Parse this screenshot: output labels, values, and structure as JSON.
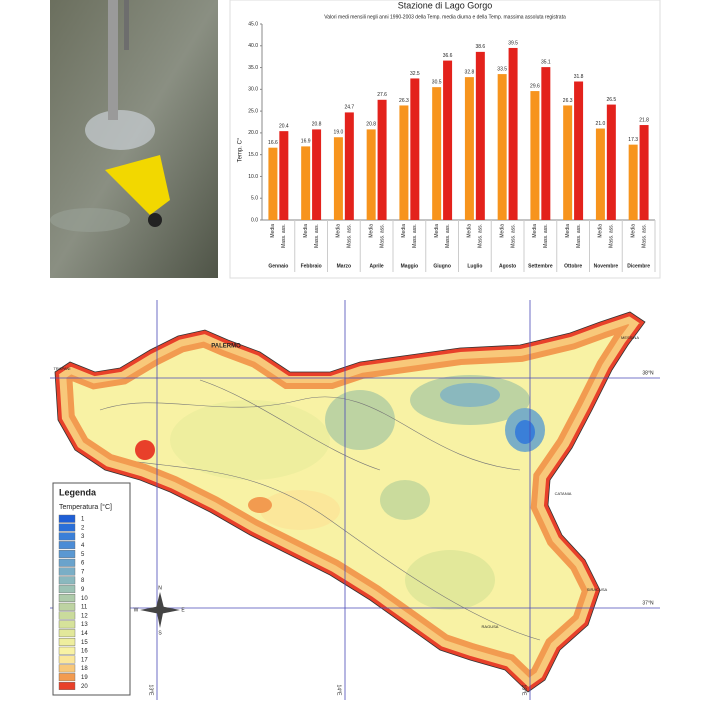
{
  "chart_data": {
    "type": "bar",
    "title": "Stazione di Lago Gorgo",
    "subtitle": "Valori medi mensili negli anni 1990-2003 della Temp. media diurna e della Temp. massima assoluta registrata",
    "y_label": "Temp. C°",
    "categories": [
      "Gennaio",
      "Febbraio",
      "Marzo",
      "Aprile",
      "Maggio",
      "Giugno",
      "Luglio",
      "Agosto",
      "Settembre",
      "Ottobre",
      "Novembre",
      "Dicembre"
    ],
    "series": [
      {
        "name": "Media",
        "color": "#f7941d",
        "values": [
          16.6,
          16.9,
          19,
          20.8,
          26.3,
          30.5,
          32.8,
          33.5,
          29.6,
          26.3,
          21,
          17.3
        ],
        "value_labels": [
          "16.6",
          "16.9",
          "19.0",
          "20.8",
          "26.3",
          "30.5",
          "32.8",
          "33.5",
          "29.6",
          "26.3",
          "21.0",
          "17.3"
        ]
      },
      {
        "name": "Mass. ass.",
        "color": "#e3221c",
        "values": [
          20.4,
          20.8,
          24.7,
          27.6,
          32.5,
          36.6,
          38.6,
          39.5,
          35.1,
          31.8,
          26.5,
          21.8
        ],
        "value_labels": [
          "20.4",
          "20.8",
          "24.7",
          "27.6",
          "32.5",
          "36.6",
          "38.6",
          "39.5",
          "35.1",
          "31.8",
          "26.5",
          "21.8"
        ]
      }
    ],
    "ylim": [
      0,
      45
    ],
    "yticks": [
      {
        "value": 0,
        "label": "0.0"
      },
      {
        "value": 5,
        "label": "5.0"
      },
      {
        "value": 10,
        "label": "10.0"
      },
      {
        "value": 15,
        "label": "15.0"
      },
      {
        "value": 20,
        "label": "20.0"
      },
      {
        "value": 25,
        "label": "25.0"
      },
      {
        "value": 30,
        "label": "30.0"
      },
      {
        "value": 35,
        "label": "35.0"
      },
      {
        "value": 40,
        "label": "40.0"
      },
      {
        "value": 45,
        "label": "45.0"
      }
    ],
    "grid": false
  },
  "map": {
    "places": [
      "PALERMO",
      "TRAPANI",
      "MESSINA",
      "CATANIA",
      "SIRACUSA",
      "RAGUSA"
    ],
    "latitudes": [
      "38°N",
      "37°N"
    ],
    "longitudes": [
      "13°E",
      "14°E",
      "15°E"
    ],
    "compass": [
      "N",
      "S",
      "W",
      "E"
    ],
    "legend": {
      "title": "Legenda",
      "subtitle": "Temperatura [°C]",
      "levels": [
        1,
        2,
        3,
        4,
        5,
        6,
        7,
        8,
        9,
        10,
        11,
        12,
        13,
        14,
        15,
        16,
        17,
        18,
        19,
        20
      ],
      "colors": [
        "#1f5fd6",
        "#2a6fd8",
        "#3a7fd8",
        "#4b8cd6",
        "#5a98d2",
        "#6aa3cc",
        "#7aaec6",
        "#8ab8be",
        "#9cc2b4",
        "#aecbaa",
        "#bdd3a2",
        "#cadb9c",
        "#d6e29a",
        "#e2e89a",
        "#eeee9e",
        "#f8f2a4",
        "#fbe79a",
        "#f8c87a",
        "#f29b50",
        "#e8402a"
      ]
    }
  }
}
